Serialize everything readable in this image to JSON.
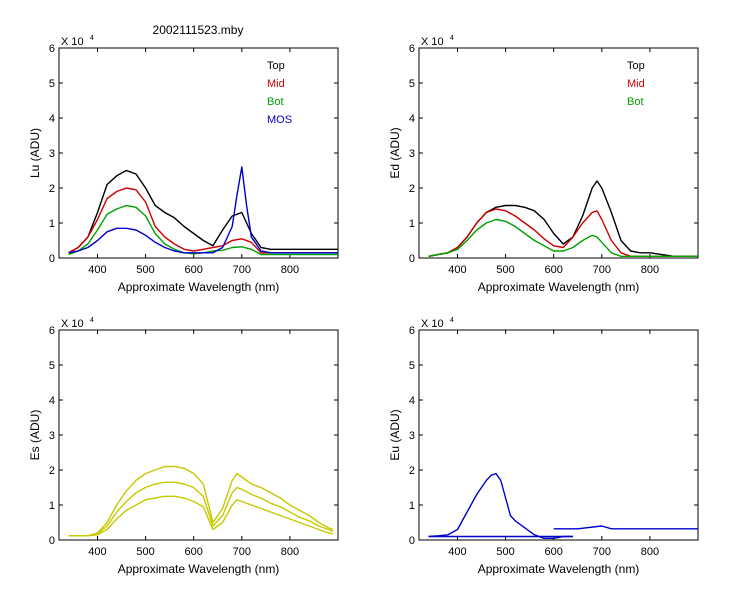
{
  "figure_title": "2002111523.mby",
  "chart_data": [
    {
      "id": "lu",
      "type": "line",
      "ylabel": "Lu (ADU)",
      "xlabel": "Approximate Wavelength (nm)",
      "multiplier": "X 10",
      "exponent": "4",
      "xlim": [
        320,
        900
      ],
      "ylim": [
        0,
        6
      ],
      "xticks": [
        400,
        500,
        600,
        700,
        800
      ],
      "yticks": [
        0,
        1,
        2,
        3,
        4,
        5,
        6
      ],
      "legend": [
        {
          "label": "Top",
          "color": "#000000"
        },
        {
          "label": "Mid",
          "color": "#cc0000"
        },
        {
          "label": "Bot",
          "color": "#00a000"
        },
        {
          "label": "MOS",
          "color": "#0000cc"
        }
      ],
      "series": [
        {
          "name": "Top",
          "color": "#000000",
          "x": [
            340,
            360,
            380,
            400,
            420,
            440,
            460,
            480,
            500,
            520,
            540,
            560,
            580,
            600,
            620,
            640,
            660,
            680,
            700,
            720,
            740,
            760,
            800,
            850,
            900
          ],
          "y": [
            0.15,
            0.3,
            0.6,
            1.3,
            2.1,
            2.35,
            2.5,
            2.4,
            2.0,
            1.5,
            1.3,
            1.15,
            0.9,
            0.7,
            0.5,
            0.35,
            0.8,
            1.2,
            1.3,
            0.7,
            0.3,
            0.25,
            0.25,
            0.25,
            0.25
          ]
        },
        {
          "name": "Mid",
          "color": "#cc0000",
          "x": [
            340,
            360,
            380,
            400,
            420,
            440,
            460,
            480,
            500,
            520,
            540,
            560,
            580,
            600,
            620,
            640,
            660,
            680,
            700,
            720,
            740,
            760,
            800,
            900
          ],
          "y": [
            0.15,
            0.3,
            0.6,
            1.1,
            1.7,
            1.9,
            2.0,
            1.95,
            1.6,
            0.9,
            0.6,
            0.4,
            0.25,
            0.2,
            0.25,
            0.3,
            0.35,
            0.5,
            0.55,
            0.45,
            0.15,
            0.15,
            0.15,
            0.15
          ]
        },
        {
          "name": "Bot",
          "color": "#00a000",
          "x": [
            340,
            360,
            380,
            400,
            420,
            440,
            460,
            480,
            500,
            520,
            540,
            560,
            580,
            600,
            620,
            640,
            660,
            680,
            700,
            720,
            740,
            760,
            800,
            900
          ],
          "y": [
            0.1,
            0.2,
            0.4,
            0.8,
            1.25,
            1.4,
            1.5,
            1.45,
            1.2,
            0.7,
            0.4,
            0.25,
            0.15,
            0.12,
            0.15,
            0.2,
            0.22,
            0.3,
            0.32,
            0.25,
            0.1,
            0.1,
            0.1,
            0.1
          ]
        },
        {
          "name": "MOS",
          "color": "#0000cc",
          "x": [
            340,
            360,
            380,
            400,
            420,
            440,
            460,
            480,
            500,
            520,
            540,
            560,
            580,
            600,
            620,
            640,
            660,
            680,
            690,
            700,
            710,
            720,
            740,
            760,
            800,
            900
          ],
          "y": [
            0.15,
            0.2,
            0.3,
            0.5,
            0.75,
            0.85,
            0.85,
            0.8,
            0.65,
            0.45,
            0.3,
            0.2,
            0.15,
            0.15,
            0.15,
            0.15,
            0.3,
            0.9,
            1.8,
            2.6,
            1.5,
            0.6,
            0.2,
            0.15,
            0.15,
            0.15
          ]
        }
      ]
    },
    {
      "id": "ed",
      "type": "line",
      "ylabel": "Ed  (ADU)",
      "xlabel": "Approximate Wavelength (nm)",
      "multiplier": "X 10",
      "exponent": "4",
      "xlim": [
        320,
        900
      ],
      "ylim": [
        0,
        6
      ],
      "xticks": [
        400,
        500,
        600,
        700,
        800
      ],
      "yticks": [
        0,
        1,
        2,
        3,
        4,
        5,
        6
      ],
      "legend": [
        {
          "label": "Top",
          "color": "#000000"
        },
        {
          "label": "Mid",
          "color": "#cc0000"
        },
        {
          "label": "Bot",
          "color": "#00a000"
        }
      ],
      "series": [
        {
          "name": "Top",
          "color": "#000000",
          "x": [
            340,
            360,
            380,
            400,
            420,
            440,
            460,
            480,
            500,
            520,
            540,
            560,
            580,
            600,
            620,
            640,
            660,
            680,
            690,
            700,
            720,
            740,
            760,
            780,
            800,
            850,
            900
          ],
          "y": [
            0.05,
            0.1,
            0.15,
            0.3,
            0.6,
            1.0,
            1.3,
            1.45,
            1.5,
            1.5,
            1.45,
            1.35,
            1.1,
            0.7,
            0.4,
            0.6,
            1.2,
            2.0,
            2.2,
            2.0,
            1.3,
            0.5,
            0.2,
            0.15,
            0.15,
            0.05,
            0.05
          ]
        },
        {
          "name": "Mid",
          "color": "#cc0000",
          "x": [
            340,
            360,
            380,
            400,
            420,
            440,
            460,
            480,
            500,
            520,
            540,
            560,
            580,
            600,
            620,
            640,
            660,
            680,
            690,
            700,
            720,
            740,
            760,
            800,
            900
          ],
          "y": [
            0.05,
            0.1,
            0.15,
            0.3,
            0.6,
            1.0,
            1.3,
            1.4,
            1.35,
            1.2,
            1.0,
            0.8,
            0.55,
            0.35,
            0.3,
            0.6,
            1.0,
            1.3,
            1.35,
            1.1,
            0.5,
            0.15,
            0.05,
            0.05,
            0.05
          ]
        },
        {
          "name": "Bot",
          "color": "#00a000",
          "x": [
            340,
            360,
            380,
            400,
            420,
            440,
            460,
            480,
            500,
            520,
            540,
            560,
            580,
            600,
            620,
            640,
            660,
            680,
            690,
            700,
            720,
            740,
            760,
            800,
            900
          ],
          "y": [
            0.05,
            0.1,
            0.15,
            0.25,
            0.5,
            0.8,
            1.0,
            1.1,
            1.05,
            0.9,
            0.7,
            0.5,
            0.35,
            0.2,
            0.2,
            0.3,
            0.5,
            0.65,
            0.6,
            0.45,
            0.15,
            0.05,
            0.05,
            0.05,
            0.05
          ]
        }
      ]
    },
    {
      "id": "es",
      "type": "line",
      "ylabel": "Es  (ADU)",
      "xlabel": "Approximate Wavelength (nm)",
      "multiplier": "X 10",
      "exponent": "4",
      "xlim": [
        320,
        900
      ],
      "ylim": [
        0,
        6
      ],
      "xticks": [
        400,
        500,
        600,
        700,
        800
      ],
      "yticks": [
        0,
        1,
        2,
        3,
        4,
        5,
        6
      ],
      "legend": [],
      "series": [
        {
          "name": "Es",
          "color": "#c8c800",
          "x": [
            340,
            360,
            380,
            400,
            420,
            440,
            460,
            480,
            500,
            520,
            540,
            560,
            580,
            600,
            620,
            640,
            660,
            680,
            690,
            700,
            720,
            740,
            760,
            780,
            800,
            820,
            840,
            860,
            880,
            890
          ],
          "y": [
            0.12,
            0.12,
            0.12,
            0.2,
            0.5,
            1.0,
            1.4,
            1.7,
            1.9,
            2.0,
            2.1,
            2.1,
            2.05,
            1.9,
            1.6,
            0.5,
            0.9,
            1.7,
            1.9,
            1.8,
            1.6,
            1.5,
            1.35,
            1.2,
            1.0,
            0.85,
            0.7,
            0.5,
            0.35,
            0.3
          ]
        },
        {
          "name": "Es",
          "color": "#c8c800",
          "x": [
            340,
            360,
            380,
            400,
            420,
            440,
            460,
            480,
            500,
            520,
            540,
            560,
            580,
            600,
            620,
            640,
            660,
            680,
            690,
            700,
            720,
            740,
            760,
            780,
            800,
            820,
            840,
            860,
            880,
            890
          ],
          "y": [
            0.12,
            0.12,
            0.12,
            0.18,
            0.4,
            0.8,
            1.1,
            1.35,
            1.5,
            1.6,
            1.65,
            1.65,
            1.6,
            1.5,
            1.25,
            0.4,
            0.7,
            1.35,
            1.5,
            1.45,
            1.3,
            1.2,
            1.05,
            0.95,
            0.8,
            0.65,
            0.55,
            0.4,
            0.3,
            0.25
          ]
        },
        {
          "name": "Es",
          "color": "#c8c800",
          "x": [
            340,
            360,
            380,
            400,
            420,
            440,
            460,
            480,
            500,
            520,
            540,
            560,
            580,
            600,
            620,
            640,
            660,
            680,
            690,
            700,
            720,
            740,
            760,
            780,
            800,
            820,
            840,
            860,
            880,
            890
          ],
          "y": [
            0.12,
            0.12,
            0.12,
            0.15,
            0.3,
            0.6,
            0.85,
            1.0,
            1.15,
            1.2,
            1.25,
            1.25,
            1.2,
            1.1,
            0.95,
            0.3,
            0.5,
            1.0,
            1.15,
            1.1,
            1.0,
            0.9,
            0.8,
            0.7,
            0.6,
            0.5,
            0.4,
            0.3,
            0.2,
            0.18
          ]
        }
      ]
    },
    {
      "id": "eu",
      "type": "line",
      "ylabel": "Eu  (ADU)",
      "xlabel": "Approximate Wavelength (nm)",
      "multiplier": "X 10",
      "exponent": "4",
      "xlim": [
        320,
        900
      ],
      "ylim": [
        0,
        6
      ],
      "xticks": [
        400,
        500,
        600,
        700,
        800
      ],
      "yticks": [
        0,
        1,
        2,
        3,
        4,
        5,
        6
      ],
      "legend": [],
      "series": [
        {
          "name": "Eu",
          "color": "#0000cc",
          "x": [
            340,
            360,
            380,
            400,
            420,
            440,
            460,
            470,
            480,
            490,
            500,
            510,
            520,
            540,
            560,
            580,
            600,
            620,
            640
          ],
          "y": [
            0.1,
            0.12,
            0.15,
            0.3,
            0.8,
            1.3,
            1.7,
            1.85,
            1.9,
            1.7,
            1.2,
            0.7,
            0.55,
            0.35,
            0.15,
            0.05,
            0.05,
            0.1,
            0.1
          ]
        },
        {
          "name": "Eu",
          "color": "#0000cc",
          "x": [
            340,
            640
          ],
          "y": [
            0.1,
            0.1
          ]
        },
        {
          "name": "Eu",
          "color": "#0000cc",
          "x": [
            600,
            650,
            700,
            720,
            800,
            900
          ],
          "y": [
            0.32,
            0.32,
            0.4,
            0.32,
            0.32,
            0.32
          ]
        }
      ]
    }
  ]
}
